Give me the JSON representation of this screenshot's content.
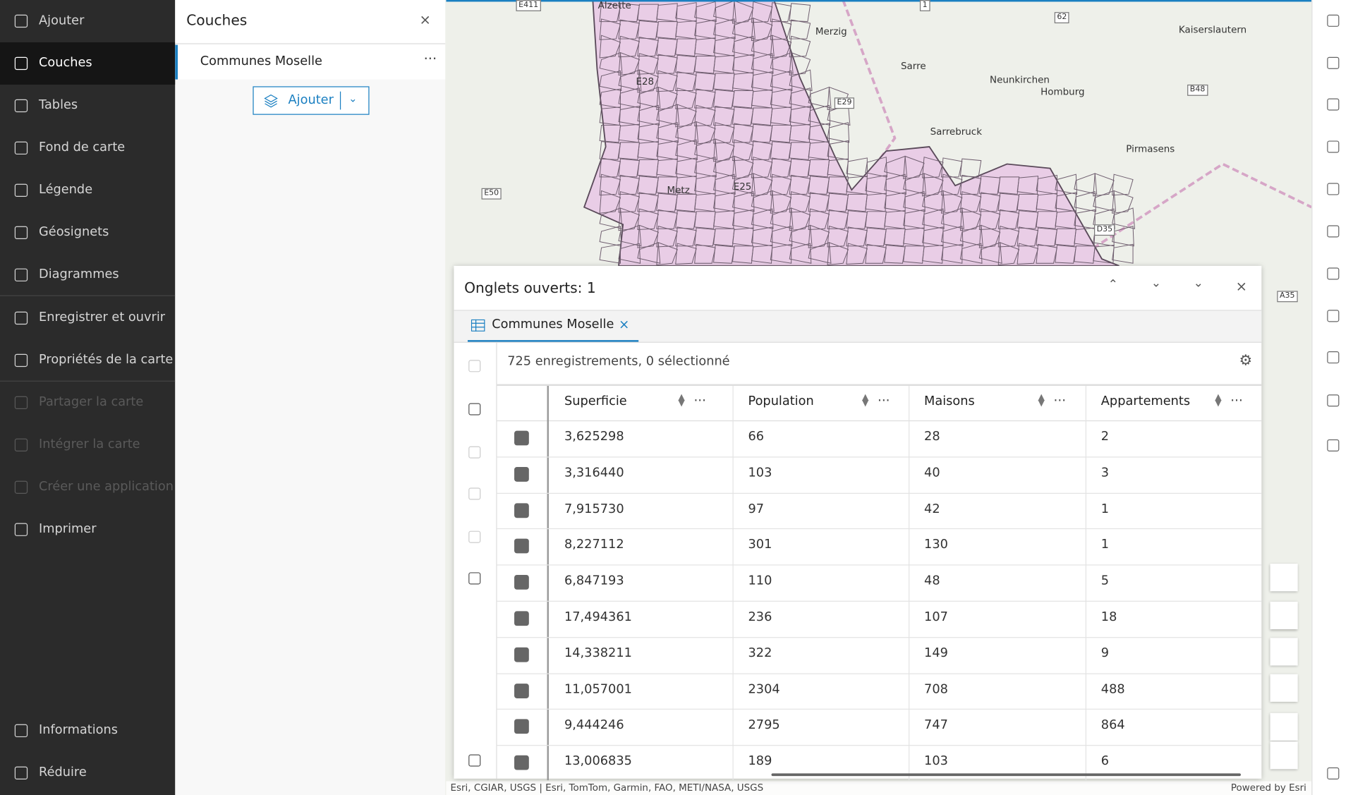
{
  "sidebar": {
    "items": [
      "Ajouter",
      "Couches",
      "Tables",
      "Fond de carte",
      "Légende",
      "Géosignets",
      "Diagrammes",
      "Enregistrer et ouvrir",
      "Propriétés de la carte",
      "Partager la carte",
      "Intégrer la carte",
      "Créer une application",
      "Imprimer"
    ],
    "bottom": [
      "Informations",
      "Réduire"
    ]
  },
  "layers_panel": {
    "title": "Couches",
    "layer": "Communes Moselle",
    "button": "Ajouter"
  },
  "map": {
    "labels": [
      "E411",
      "Alzette",
      "1",
      "62",
      "Merzig",
      "Kaiserslautern",
      "Sarre",
      "Neunkirchen",
      "Homburg",
      "B48",
      "E29",
      "Sarrebruck",
      "Pirmasens",
      "E50",
      "Metz",
      "E25",
      "D35",
      "A35",
      "E28"
    ],
    "attribution": "Esri, CGIAR, USGS | Esri, TomTom, Garmin, FAO, METI/NASA, USGS",
    "powered": "Powered by Esri"
  },
  "table_panel": {
    "title": "Onglets ouverts: 1",
    "tab": "Communes Moselle",
    "records": "725 enregistrements, 0 sélectionné",
    "columns": [
      "Superficie",
      "Population",
      "Maisons",
      "Appartements"
    ],
    "rows": [
      [
        "3,625298",
        "66",
        "28",
        "2"
      ],
      [
        "3,316440",
        "103",
        "40",
        "3"
      ],
      [
        "7,915730",
        "97",
        "42",
        "1"
      ],
      [
        "8,227112",
        "301",
        "130",
        "1"
      ],
      [
        "6,847193",
        "110",
        "48",
        "5"
      ],
      [
        "17,494361",
        "236",
        "107",
        "18"
      ],
      [
        "14,338211",
        "322",
        "149",
        "9"
      ],
      [
        "11,057001",
        "2304",
        "708",
        "488"
      ],
      [
        "9,444246",
        "2795",
        "747",
        "864"
      ],
      [
        "13,006835",
        "189",
        "103",
        "6"
      ]
    ]
  }
}
